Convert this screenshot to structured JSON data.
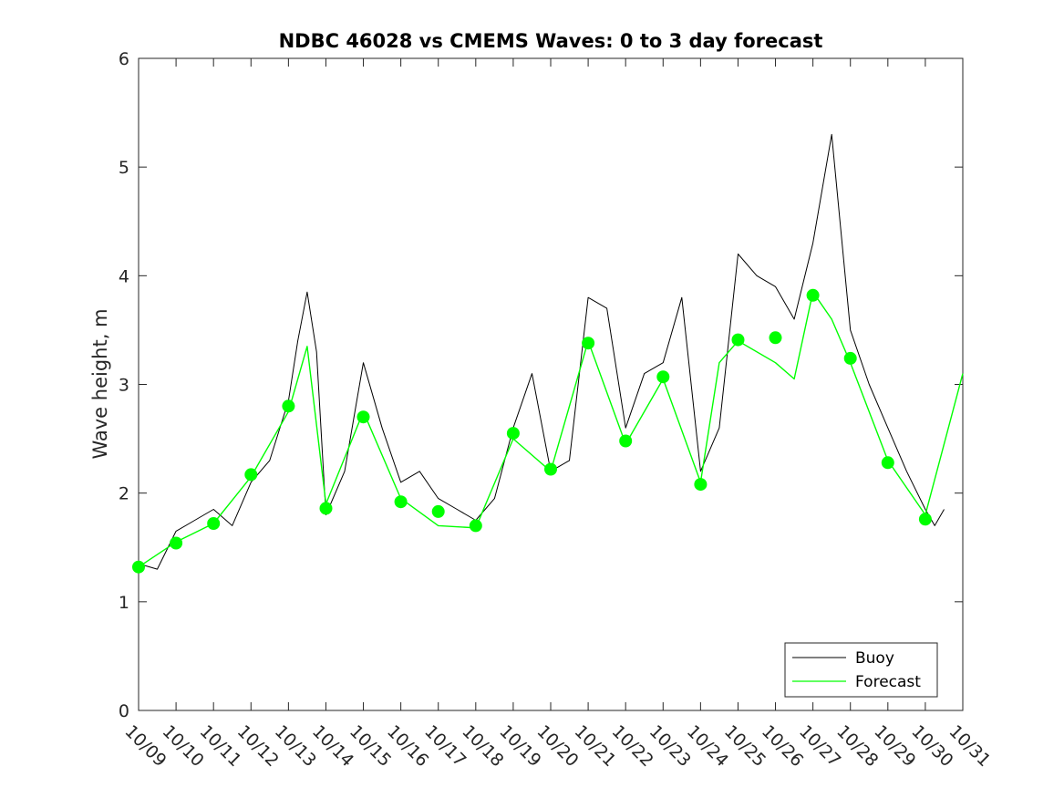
{
  "chart_data": {
    "type": "line",
    "title": "NDBC 46028 vs CMEMS Waves: 0 to 3 day forecast",
    "xlabel": "",
    "ylabel": "Wave height, m",
    "xlim": [
      "10/09",
      "10/31"
    ],
    "ylim": [
      0,
      6
    ],
    "x_tick_labels": [
      "10/09",
      "10/10",
      "10/11",
      "10/12",
      "10/13",
      "10/14",
      "10/15",
      "10/16",
      "10/17",
      "10/18",
      "10/19",
      "10/20",
      "10/21",
      "10/22",
      "10/23",
      "10/24",
      "10/25",
      "10/26",
      "10/27",
      "10/28",
      "10/29",
      "10/30",
      "10/31"
    ],
    "y_ticks": [
      0,
      1,
      2,
      3,
      4,
      5,
      6
    ],
    "grid": false,
    "legend_position": "bottom-right",
    "colors": {
      "buoy": "#000000",
      "forecast": "#00ff00",
      "axis": "#262626"
    },
    "series": [
      {
        "name": "Buoy",
        "x": [
          "10/09 00:00",
          "10/09 12:00",
          "10/10 00:00",
          "10/10 12:00",
          "10/11 00:00",
          "10/11 12:00",
          "10/12 00:00",
          "10/12 12:00",
          "10/13 00:00",
          "10/13 06:00",
          "10/13 12:00",
          "10/13 18:00",
          "10/14 00:00",
          "10/14 12:00",
          "10/15 00:00",
          "10/15 12:00",
          "10/16 00:00",
          "10/16 12:00",
          "10/17 00:00",
          "10/17 12:00",
          "10/18 00:00",
          "10/18 12:00",
          "10/19 00:00",
          "10/19 12:00",
          "10/20 00:00",
          "10/20 12:00",
          "10/21 00:00",
          "10/21 12:00",
          "10/22 00:00",
          "10/22 12:00",
          "10/23 00:00",
          "10/23 12:00",
          "10/24 00:00",
          "10/24 12:00",
          "10/25 00:00",
          "10/25 12:00",
          "10/26 00:00",
          "10/26 12:00",
          "10/27 00:00",
          "10/27 12:00",
          "10/28 00:00",
          "10/28 12:00",
          "10/29 00:00",
          "10/29 12:00",
          "10/30 00:00",
          "10/30 06:00",
          "10/30 12:00"
        ],
        "values": [
          1.35,
          1.3,
          1.65,
          1.75,
          1.85,
          1.7,
          2.1,
          2.3,
          2.85,
          3.4,
          3.85,
          3.3,
          1.8,
          2.2,
          3.2,
          2.6,
          2.1,
          2.2,
          1.95,
          1.85,
          1.75,
          1.95,
          2.6,
          3.1,
          2.2,
          2.3,
          3.8,
          3.7,
          2.6,
          3.1,
          3.2,
          3.8,
          2.2,
          2.6,
          4.2,
          4.0,
          3.9,
          3.6,
          4.3,
          5.3,
          3.5,
          3.0,
          2.6,
          2.2,
          1.85,
          1.7,
          1.85
        ]
      },
      {
        "name": "Forecast",
        "x": [
          "10/09 00:00",
          "10/10 00:00",
          "10/11 00:00",
          "10/12 00:00",
          "10/13 00:00",
          "10/13 12:00",
          "10/14 00:00",
          "10/15 00:00",
          "10/16 00:00",
          "10/17 00:00",
          "10/18 00:00",
          "10/19 00:00",
          "10/20 00:00",
          "10/21 00:00",
          "10/22 00:00",
          "10/23 00:00",
          "10/24 00:00",
          "10/24 12:00",
          "10/25 00:00",
          "10/26 00:00",
          "10/26 12:00",
          "10/27 00:00",
          "10/27 12:00",
          "10/28 00:00",
          "10/29 00:00",
          "10/30 00:00",
          "10/31 00:00"
        ],
        "values": [
          1.32,
          1.55,
          1.72,
          2.15,
          2.75,
          3.35,
          1.9,
          2.75,
          1.95,
          1.7,
          1.68,
          2.5,
          2.2,
          3.4,
          2.45,
          3.05,
          2.1,
          3.2,
          3.4,
          3.2,
          3.05,
          3.85,
          3.6,
          3.2,
          2.3,
          1.8,
          3.1
        ]
      }
    ],
    "forecast_markers": {
      "x": [
        "10/09",
        "10/10",
        "10/11",
        "10/12",
        "10/13",
        "10/14",
        "10/15",
        "10/16",
        "10/17",
        "10/18",
        "10/19",
        "10/20",
        "10/21",
        "10/22",
        "10/23",
        "10/24",
        "10/25",
        "10/26",
        "10/27",
        "10/28",
        "10/29",
        "10/30"
      ],
      "values": [
        1.32,
        1.54,
        1.72,
        2.17,
        2.8,
        1.86,
        2.7,
        1.92,
        1.83,
        1.7,
        2.55,
        2.22,
        3.38,
        2.48,
        3.07,
        2.08,
        3.41,
        3.43,
        3.82,
        3.24,
        2.28,
        1.76
      ]
    }
  }
}
